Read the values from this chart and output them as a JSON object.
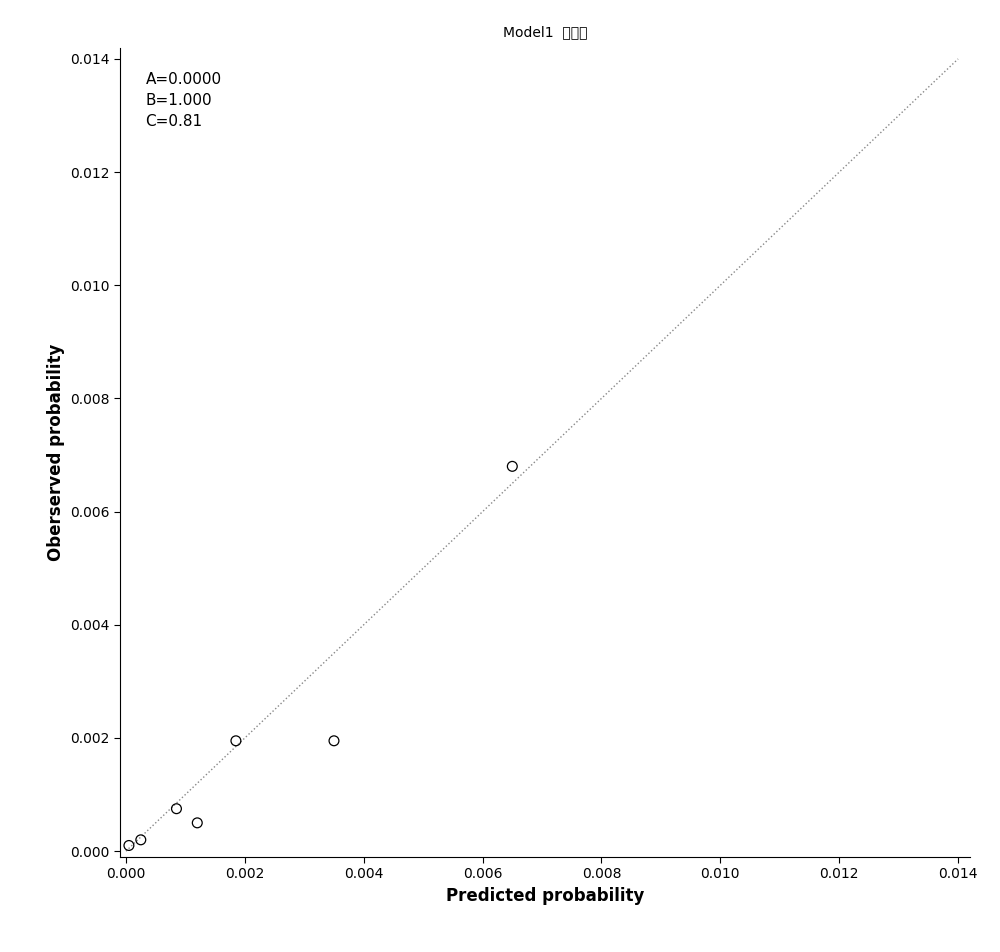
{
  "title": "Model1  训练集",
  "xlabel": "Predicted probability",
  "ylabel": "Oberserved probability",
  "annotation": "A=0.0000\nB=1.000\nC=0.81",
  "xlim": [
    -0.0001,
    0.0142
  ],
  "ylim": [
    -0.0001,
    0.0142
  ],
  "xticks": [
    0.0,
    0.002,
    0.004,
    0.006,
    0.008,
    0.01,
    0.012,
    0.014
  ],
  "yticks": [
    0.0,
    0.002,
    0.004,
    0.006,
    0.008,
    0.01,
    0.012,
    0.014
  ],
  "points_x": [
    5e-05,
    0.00025,
    0.00085,
    0.0012,
    0.00185,
    0.0035,
    0.0065
  ],
  "points_y": [
    0.0001,
    0.0002,
    0.00075,
    0.0005,
    0.00195,
    0.00195,
    0.0068
  ],
  "diagonal_color": "#888888",
  "point_color": "#000000",
  "point_size": 50,
  "background_color": "#ffffff",
  "title_fontsize": 13,
  "label_fontsize": 12,
  "tick_fontsize": 10,
  "annotation_fontsize": 11
}
